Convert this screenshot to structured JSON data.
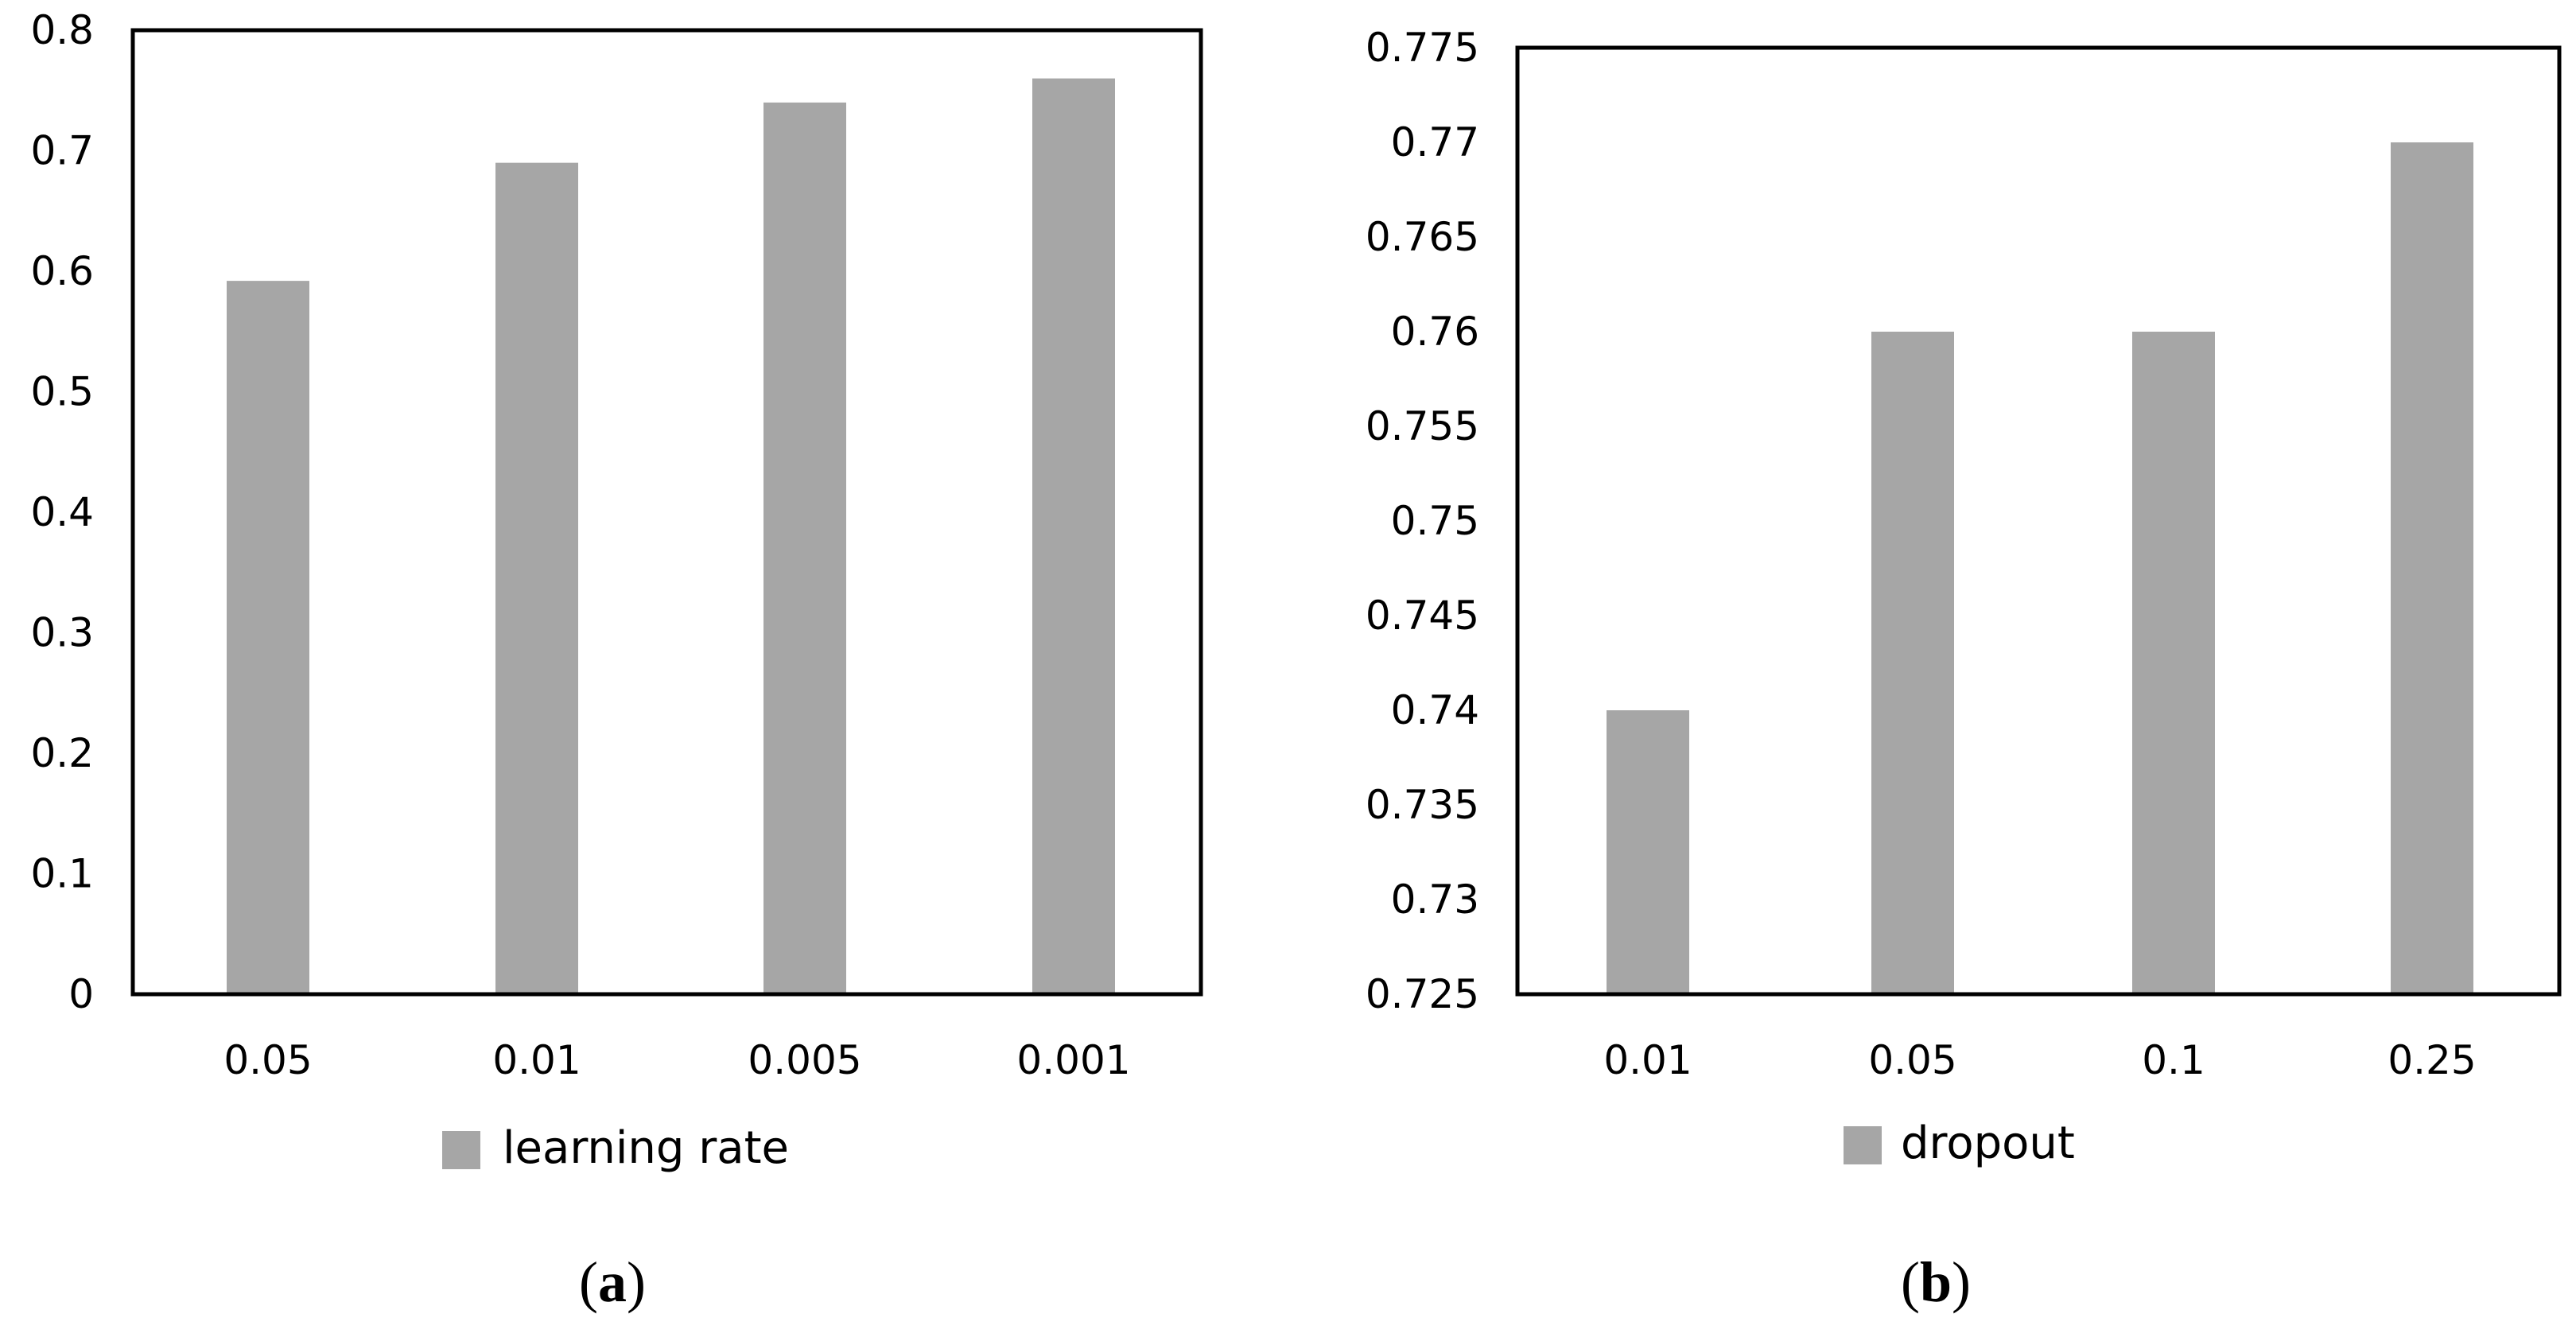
{
  "chart_data": [
    {
      "type": "bar",
      "categories": [
        "0.05",
        "0.01",
        "0.005",
        "0.001"
      ],
      "series": [
        {
          "name": "learning rate",
          "values": [
            0.592,
            0.69,
            0.74,
            0.76
          ]
        }
      ],
      "ylim": [
        0,
        0.8
      ],
      "yticks": [
        "0",
        "0.1",
        "0.2",
        "0.3",
        "0.4",
        "0.5",
        "0.6",
        "0.7",
        "0.8"
      ],
      "bar_color": "#a6a6a6",
      "grid": false,
      "legend_position": "bottom",
      "caption_open": "(",
      "caption_letter": "a",
      "caption_close": ")"
    },
    {
      "type": "bar",
      "categories": [
        "0.01",
        "0.05",
        "0.1",
        "0.25"
      ],
      "series": [
        {
          "name": "dropout",
          "values": [
            0.74,
            0.76,
            0.76,
            0.77
          ]
        }
      ],
      "ylim": [
        0.725,
        0.775
      ],
      "yticks": [
        "0.725",
        "0.73",
        "0.735",
        "0.74",
        "0.745",
        "0.75",
        "0.755",
        "0.76",
        "0.765",
        "0.77",
        "0.775"
      ],
      "bar_color": "#a6a6a6",
      "grid": false,
      "legend_position": "bottom",
      "caption_open": "(",
      "caption_letter": "b",
      "caption_close": ")"
    }
  ]
}
